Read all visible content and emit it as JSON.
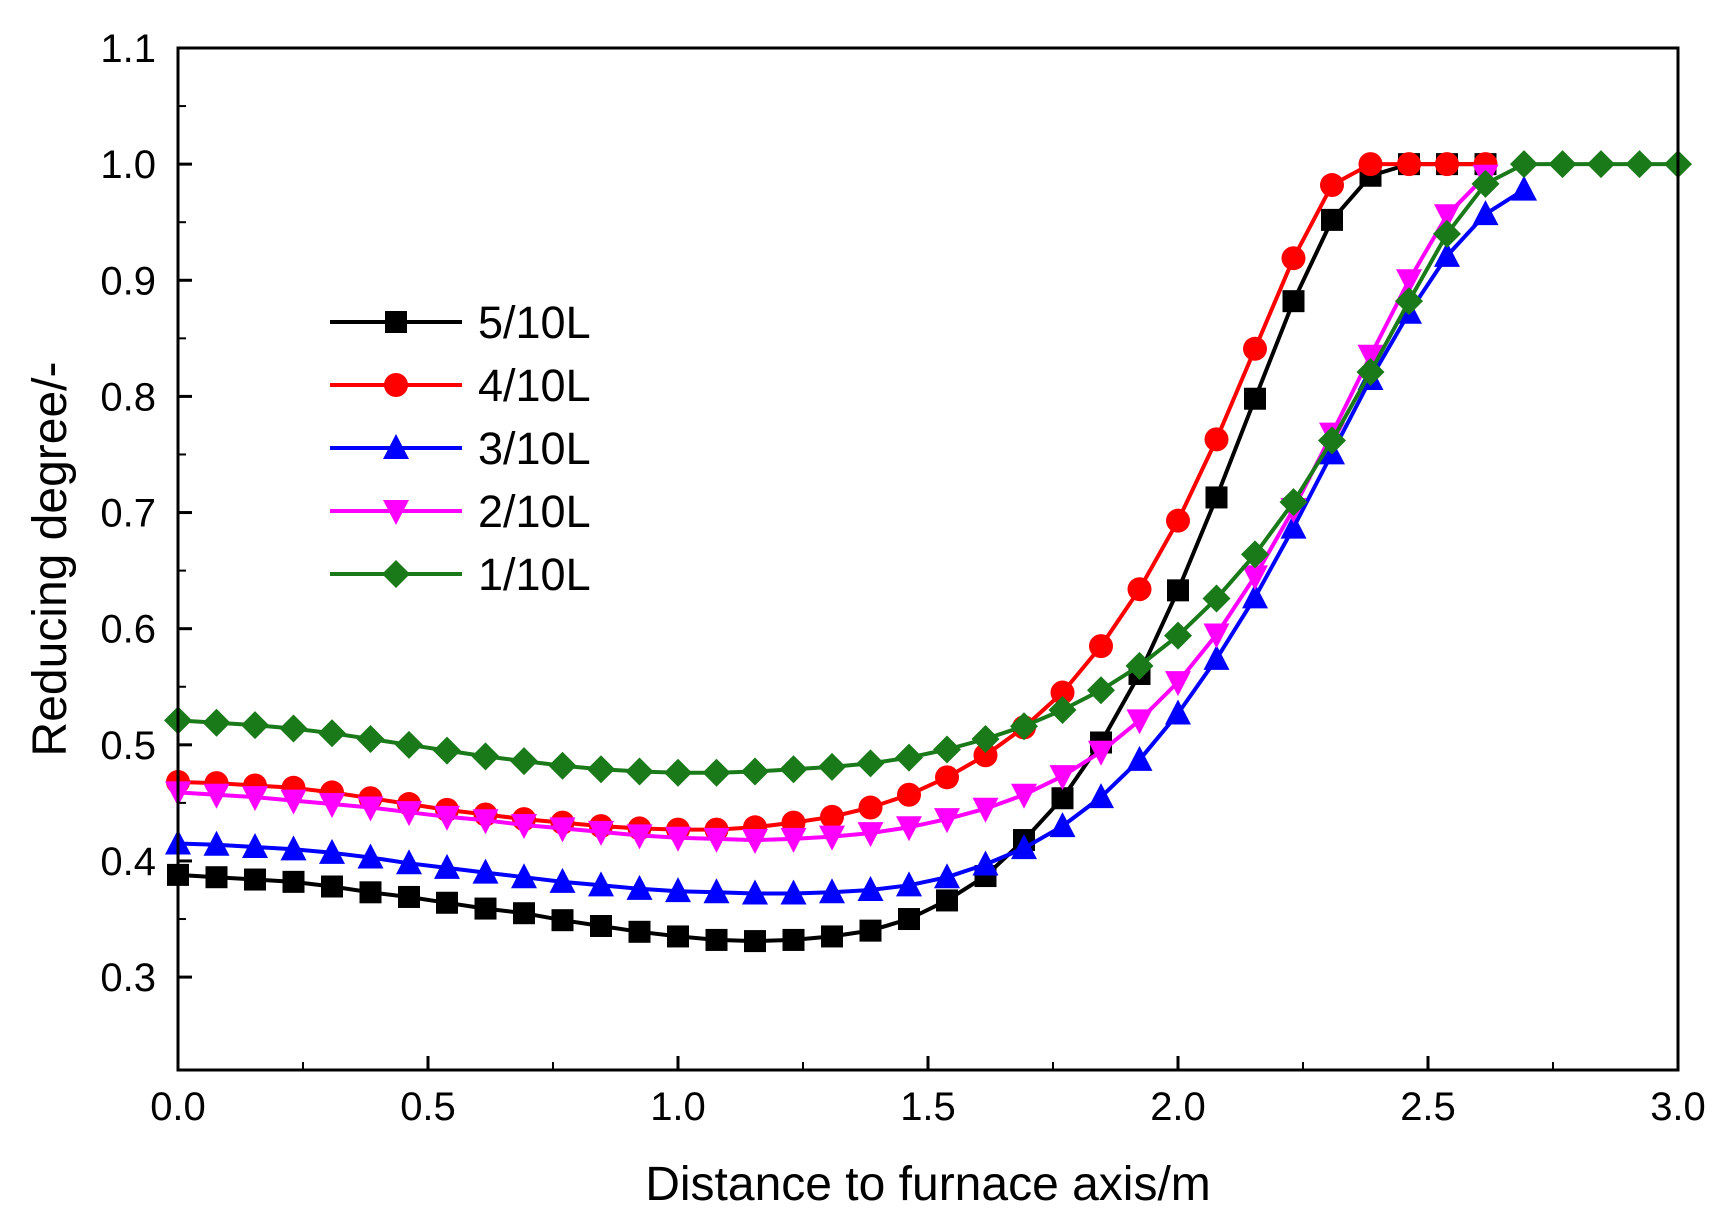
{
  "chart_data": {
    "type": "line",
    "title": "",
    "xlabel": "Distance to furnace axis/m",
    "ylabel": "Reducing degree/-",
    "xlim": [
      0.0,
      3.0
    ],
    "ylim": [
      0.22,
      1.1
    ],
    "x_ticks": [
      0.0,
      0.5,
      1.0,
      1.5,
      2.0,
      2.5,
      3.0
    ],
    "x_tick_labels": [
      "0.0",
      "0.5",
      "1.0",
      "1.5",
      "2.0",
      "2.5",
      "3.0"
    ],
    "y_ticks": [
      0.3,
      0.4,
      0.5,
      0.6,
      0.7,
      0.8,
      0.9,
      1.0,
      1.1
    ],
    "y_tick_labels": [
      "0.3",
      "0.4",
      "0.5",
      "0.6",
      "0.7",
      "0.8",
      "0.9",
      "1.0",
      "1.1"
    ],
    "grid": false,
    "legend_position": "upper-left",
    "series": [
      {
        "name": "5/10L",
        "color": "#000000",
        "marker": "square",
        "x": [
          0.0,
          0.077,
          0.154,
          0.231,
          0.308,
          0.385,
          0.462,
          0.538,
          0.615,
          0.692,
          0.769,
          0.846,
          0.923,
          1.0,
          1.077,
          1.154,
          1.231,
          1.308,
          1.385,
          1.462,
          1.538,
          1.615,
          1.692,
          1.769,
          1.846,
          1.923,
          2.0,
          2.077,
          2.154,
          2.231,
          2.308,
          2.385,
          2.462,
          2.538,
          2.615
        ],
        "y": [
          0.388,
          0.386,
          0.384,
          0.382,
          0.378,
          0.373,
          0.369,
          0.364,
          0.359,
          0.355,
          0.349,
          0.344,
          0.339,
          0.335,
          0.332,
          0.331,
          0.332,
          0.335,
          0.34,
          0.35,
          0.366,
          0.387,
          0.418,
          0.454,
          0.502,
          0.561,
          0.633,
          0.713,
          0.798,
          0.882,
          0.952,
          0.99,
          1.0,
          1.0,
          1.0
        ]
      },
      {
        "name": "4/10L",
        "color": "#ff0000",
        "marker": "circle",
        "x": [
          0.0,
          0.077,
          0.154,
          0.231,
          0.308,
          0.385,
          0.462,
          0.538,
          0.615,
          0.692,
          0.769,
          0.846,
          0.923,
          1.0,
          1.077,
          1.154,
          1.231,
          1.308,
          1.385,
          1.462,
          1.538,
          1.615,
          1.692,
          1.769,
          1.846,
          1.923,
          2.0,
          2.077,
          2.154,
          2.231,
          2.308,
          2.385,
          2.462,
          2.538,
          2.615
        ],
        "y": [
          0.468,
          0.467,
          0.465,
          0.463,
          0.459,
          0.454,
          0.449,
          0.444,
          0.44,
          0.436,
          0.433,
          0.43,
          0.428,
          0.427,
          0.427,
          0.429,
          0.433,
          0.438,
          0.446,
          0.457,
          0.472,
          0.491,
          0.515,
          0.545,
          0.585,
          0.634,
          0.693,
          0.763,
          0.841,
          0.919,
          0.982,
          1.0,
          1.0,
          1.0,
          1.0
        ]
      },
      {
        "name": "3/10L",
        "color": "#0000ff",
        "marker": "triangle-up",
        "x": [
          0.0,
          0.077,
          0.154,
          0.231,
          0.308,
          0.385,
          0.462,
          0.538,
          0.615,
          0.692,
          0.769,
          0.846,
          0.923,
          1.0,
          1.077,
          1.154,
          1.231,
          1.308,
          1.385,
          1.462,
          1.538,
          1.615,
          1.692,
          1.769,
          1.846,
          1.923,
          2.0,
          2.077,
          2.154,
          2.231,
          2.308,
          2.385,
          2.462,
          2.538,
          2.615,
          2.692
        ],
        "y": [
          0.415,
          0.414,
          0.412,
          0.41,
          0.407,
          0.403,
          0.398,
          0.394,
          0.39,
          0.386,
          0.382,
          0.379,
          0.376,
          0.374,
          0.373,
          0.372,
          0.372,
          0.373,
          0.375,
          0.379,
          0.386,
          0.397,
          0.411,
          0.43,
          0.455,
          0.487,
          0.527,
          0.574,
          0.627,
          0.687,
          0.751,
          0.815,
          0.872,
          0.921,
          0.957,
          0.978
        ]
      },
      {
        "name": "2/10L",
        "color": "#ff00ff",
        "marker": "triangle-down",
        "x": [
          0.0,
          0.077,
          0.154,
          0.231,
          0.308,
          0.385,
          0.462,
          0.538,
          0.615,
          0.692,
          0.769,
          0.846,
          0.923,
          1.0,
          1.077,
          1.154,
          1.231,
          1.308,
          1.385,
          1.462,
          1.538,
          1.615,
          1.692,
          1.769,
          1.846,
          1.923,
          2.0,
          2.077,
          2.154,
          2.231,
          2.308,
          2.385,
          2.462,
          2.538,
          2.615
        ],
        "y": [
          0.459,
          0.457,
          0.455,
          0.452,
          0.449,
          0.446,
          0.442,
          0.438,
          0.435,
          0.431,
          0.428,
          0.425,
          0.422,
          0.42,
          0.419,
          0.418,
          0.419,
          0.421,
          0.424,
          0.429,
          0.436,
          0.445,
          0.457,
          0.473,
          0.494,
          0.521,
          0.554,
          0.595,
          0.645,
          0.703,
          0.768,
          0.835,
          0.9,
          0.956,
          0.99
        ]
      },
      {
        "name": "1/10L",
        "color": "#1a7a1a",
        "marker": "diamond",
        "x": [
          0.0,
          0.077,
          0.154,
          0.231,
          0.308,
          0.385,
          0.462,
          0.538,
          0.615,
          0.692,
          0.769,
          0.846,
          0.923,
          1.0,
          1.077,
          1.154,
          1.231,
          1.308,
          1.385,
          1.462,
          1.538,
          1.615,
          1.692,
          1.769,
          1.846,
          1.923,
          2.0,
          2.077,
          2.154,
          2.231,
          2.308,
          2.385,
          2.462,
          2.538,
          2.615,
          2.692,
          2.769,
          2.846,
          2.923,
          3.0
        ],
        "y": [
          0.521,
          0.519,
          0.517,
          0.514,
          0.51,
          0.505,
          0.5,
          0.495,
          0.49,
          0.486,
          0.482,
          0.479,
          0.477,
          0.476,
          0.476,
          0.477,
          0.479,
          0.481,
          0.484,
          0.489,
          0.496,
          0.505,
          0.516,
          0.53,
          0.547,
          0.568,
          0.594,
          0.626,
          0.664,
          0.709,
          0.762,
          0.821,
          0.882,
          0.94,
          0.983,
          1.0,
          1.0,
          1.0,
          1.0,
          1.0
        ]
      }
    ]
  }
}
